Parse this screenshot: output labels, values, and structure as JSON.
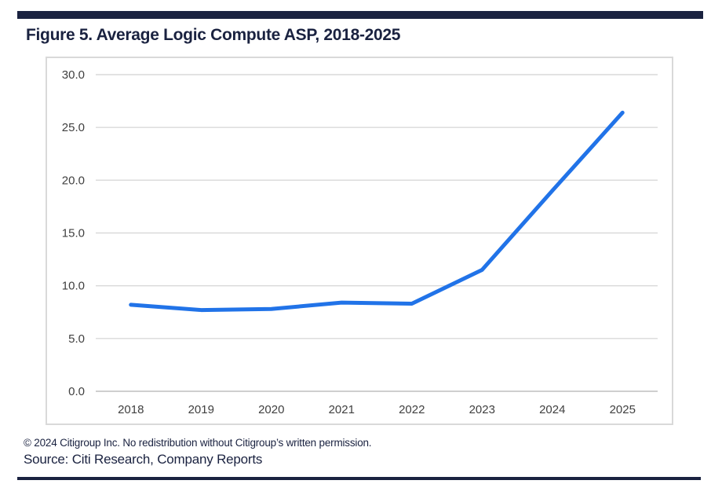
{
  "page": {
    "title": "Figure 5. Average Logic Compute ASP, 2018-2025",
    "copyright": "© 2024 Citigroup Inc. No redistribution without Citigroup’s written permission.",
    "source": "Source: Citi Research, Company Reports"
  },
  "colors": {
    "navy": "#1a2240",
    "line_blue": "#2173e8",
    "gridline": "#d9d9d9",
    "axis_line": "#bfbfbf",
    "tick_text": "#404040",
    "chart_border": "#d9d9d9"
  },
  "chart_data": {
    "type": "line",
    "title": "Average Logic Compute ASP, 2018-2025",
    "categories": [
      "2018",
      "2019",
      "2020",
      "2021",
      "2022",
      "2023",
      "2024",
      "2025"
    ],
    "series": [
      {
        "name": "Average Logic Compute ASP",
        "values": [
          8.2,
          7.7,
          7.8,
          8.4,
          8.3,
          11.5,
          19.0,
          26.4
        ]
      }
    ],
    "xlabel": "",
    "ylabel": "",
    "ylim": [
      0,
      30
    ],
    "ytick_step": 5,
    "ytick_format_decimals": 1,
    "grid": true,
    "legend": "none",
    "line_width": 5
  }
}
